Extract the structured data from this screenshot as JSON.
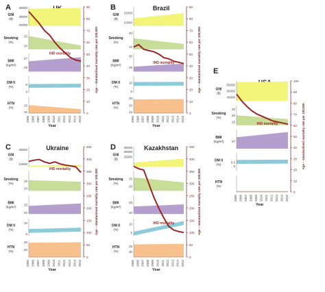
{
  "colors": {
    "gni": "#f3f57a",
    "smoking": "#c7dd98",
    "bmi": "#b59fcf",
    "dm": "#8ccbd9",
    "htn": "#f7c08c",
    "mortality": "#9b2424",
    "axis_right": "#7a1e1e"
  },
  "chart_data": [
    {
      "type": "area",
      "panel_letter": "A",
      "title": "UK",
      "xlabel": "Year",
      "x": [
        "2005",
        "2006",
        "2007",
        "2008",
        "2009",
        "2010",
        "2011",
        "2012",
        "2013",
        "2014",
        "2015"
      ],
      "rows": [
        {
          "name": "GNI ($)",
          "ticks": [
            "35000",
            "30000",
            "25000"
          ],
          "lo": 25000,
          "hi": 35000,
          "start": 34000,
          "end": 34500
        },
        {
          "name": "Smoking (%)",
          "ticks": [
            "25",
            "20"
          ],
          "lo": 18,
          "hi": 28,
          "start": 25,
          "end": 20
        },
        {
          "name": "BMI (Kg/m²)",
          "ticks": [
            "27",
            "25"
          ],
          "lo": 24,
          "hi": 28,
          "start": 26.3,
          "end": 27.2
        },
        {
          "name": "DM II (%)",
          "ticks": [
            "5",
            "0"
          ],
          "lo": 0,
          "hi": 10,
          "start": 5.2,
          "end": 5.4
        },
        {
          "name": "HTN (%)",
          "ticks": [
            "15",
            "10"
          ],
          "lo": 10,
          "hi": 20,
          "start": 15,
          "end": 12.5
        }
      ],
      "mortality": {
        "label": "Age – standardised mortality rate per 100,000",
        "series_label": "IHD mortality",
        "yticks": [
          "0",
          "10",
          "20",
          "30",
          "40",
          "50",
          "60",
          "70",
          "80",
          "90"
        ],
        "ylim": [
          0,
          90
        ],
        "values": [
          86,
          81,
          76,
          70,
          66,
          60,
          55,
          51,
          47,
          45,
          44
        ]
      }
    },
    {
      "type": "area",
      "panel_letter": "B",
      "title": "Brazil",
      "xlabel": "Year",
      "x": [
        "2005",
        "2006",
        "2007",
        "2008",
        "2009",
        "2010",
        "2011",
        "2012",
        "2013",
        "2014",
        "2015"
      ],
      "rows": [
        {
          "name": "GNI ($)",
          "ticks": [
            "15000",
            "10000"
          ],
          "lo": 8000,
          "hi": 18000,
          "start": 12000,
          "end": 14800
        },
        {
          "name": "Smoking (%)",
          "ticks": [
            "20",
            "10"
          ],
          "lo": 8,
          "hi": 22,
          "start": 16,
          "end": 12
        },
        {
          "name": "BMI (Kg/m²)",
          "ticks": [
            "30",
            "25"
          ],
          "lo": 23,
          "hi": 31,
          "start": 25.2,
          "end": 26.6
        },
        {
          "name": "DM II (%)",
          "ticks": [
            "10",
            "5"
          ],
          "lo": 4,
          "hi": 14,
          "start": 10.4,
          "end": 10.5
        },
        {
          "name": "HTN (%)",
          "ticks": [
            "25",
            "20",
            "15"
          ],
          "lo": 15,
          "hi": 25,
          "start": 23.6,
          "end": 23.8
        }
      ],
      "mortality": {
        "label": "Age – standardised mortality rate per 100,000",
        "series_label": "IHD mortality",
        "yticks": [
          "0",
          "10",
          "20",
          "30",
          "40",
          "50",
          "60",
          "70",
          "80",
          "90"
        ],
        "ylim": [
          0,
          90
        ],
        "values": [
          56,
          58,
          54,
          53,
          52,
          50,
          47,
          46,
          44,
          43,
          42
        ]
      }
    },
    {
      "type": "area",
      "panel_letter": "C",
      "title": "Ukraine",
      "xlabel": "Year",
      "x": [
        "2005",
        "2006",
        "2007",
        "2008",
        "2009",
        "2010",
        "2011",
        "2012",
        "2013",
        "2014",
        "2015"
      ],
      "rows": [
        {
          "name": "GNI ($)",
          "ticks": [
            "35000",
            "10000"
          ],
          "lo": 5000,
          "hi": 40000,
          "start": 7000,
          "end": 8000
        },
        {
          "name": "Smoking (%)",
          "ticks": [
            "25",
            "20"
          ],
          "lo": 18,
          "hi": 32,
          "start": 25.5,
          "end": 24.5
        },
        {
          "name": "BMI (Kg/m²)",
          "ticks": [
            "25",
            "20"
          ],
          "lo": 22,
          "hi": 28,
          "start": 24.6,
          "end": 25.4
        },
        {
          "name": "DM II (%)",
          "ticks": [
            "10",
            "5"
          ],
          "lo": 4,
          "hi": 12,
          "start": 7.2,
          "end": 7.8
        },
        {
          "name": "HTN (%)",
          "ticks": [
            "25",
            "20"
          ],
          "lo": 15,
          "hi": 26,
          "start": 24.5,
          "end": 24.8
        }
      ],
      "mortality": {
        "label": "Age – standardised mortality rate per 100,000",
        "series_label": "IHD mortality",
        "yticks": [
          "0",
          "50",
          "100",
          "150",
          "200",
          "250",
          "300",
          "350",
          "400",
          "450"
        ],
        "ylim": [
          0,
          450
        ],
        "values": [
          390,
          395,
          398,
          388,
          382,
          388,
          380,
          375,
          372,
          368,
          345
        ]
      }
    },
    {
      "type": "area",
      "panel_letter": "D",
      "title": "Kazakhstan",
      "xlabel": "Year",
      "x": [
        "2005",
        "2006",
        "2007",
        "2008",
        "2009",
        "2010",
        "2011",
        "2012",
        "2013",
        "2014",
        "2015"
      ],
      "rows": [
        {
          "name": "GNI ($)",
          "ticks": [
            "35000",
            "30000",
            "25000"
          ],
          "lo": 15000,
          "hi": 35000,
          "start": 19000,
          "end": 23000
        },
        {
          "name": "Smoking (%)",
          "ticks": [
            "25",
            "20"
          ],
          "lo": 17,
          "hi": 30,
          "start": 25.8,
          "end": 22.5
        },
        {
          "name": "BMI (Kg/m²)",
          "ticks": [
            "25",
            "20"
          ],
          "lo": 20,
          "hi": 28,
          "start": 23.2,
          "end": 24.1
        },
        {
          "name": "DM II (%)",
          "ticks": [
            "10",
            "5"
          ],
          "lo": 3,
          "hi": 13,
          "start": 5.5,
          "end": 11.5
        },
        {
          "name": "HTN (%)",
          "ticks": [
            "25",
            "20"
          ],
          "lo": 15,
          "hi": 30,
          "start": 26.5,
          "end": 27
        }
      ],
      "mortality": {
        "label": "Age – standardised mortality rate per 100,000",
        "series_label": "IHD mortality",
        "yticks": [
          "0",
          "50",
          "100",
          "150",
          "200",
          "250",
          "300",
          "350",
          "400",
          "450"
        ],
        "ylim": [
          0,
          450
        ],
        "values": [
          370,
          360,
          355,
          300,
          245,
          200,
          160,
          125,
          110,
          104,
          100
        ]
      }
    },
    {
      "type": "area",
      "panel_letter": "E",
      "title": "USA",
      "xlabel": "Year",
      "x": [
        "2005",
        "2006",
        "2007",
        "2008",
        "2009",
        "2010",
        "2011",
        "2012",
        "2013",
        "2014",
        "2015"
      ],
      "rows": [
        {
          "name": "GNI ($)",
          "ticks": [
            "55000",
            "50000",
            "45000"
          ],
          "lo": 42000,
          "hi": 58000,
          "start": 57000,
          "end": 57500
        },
        {
          "name": "Smoking (%)",
          "ticks": [
            "25",
            "20",
            "15"
          ],
          "lo": 12,
          "hi": 28,
          "start": 20,
          "end": 17
        },
        {
          "name": "BMI (Kg/m²)",
          "ticks": [
            "27"
          ],
          "lo": 25,
          "hi": 30,
          "start": 28,
          "end": 29.4
        },
        {
          "name": "DM II (%)",
          "ticks": [
            "6.5",
            "5"
          ],
          "lo": 3,
          "hi": 10,
          "start": 7.3,
          "end": 7.4
        },
        {
          "name": "HTN (%)",
          "ticks": [],
          "lo": 10,
          "hi": 30,
          "start": 11,
          "end": 11
        }
      ],
      "mortality": {
        "label": "Age – standardised mortality rate per 100,000",
        "series_label": "IHD mortality",
        "yticks": [
          "0",
          "10",
          "20",
          "30",
          "40",
          "50",
          "60",
          "70",
          "80",
          "90",
          "100"
        ],
        "ylim": [
          0,
          100
        ],
        "values": [
          88,
          82,
          77,
          73,
          70,
          68,
          66,
          64,
          63,
          62,
          61
        ]
      }
    }
  ]
}
